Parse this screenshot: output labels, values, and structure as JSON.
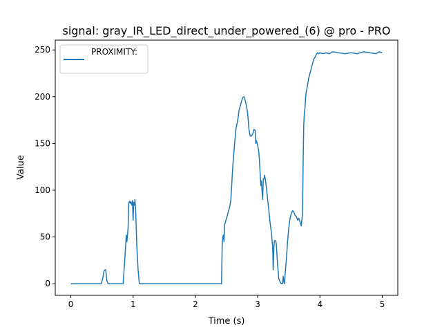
{
  "chart_data": {
    "type": "line",
    "title": "signal: gray_IR_LED_direct_under_powered_(6) @ pro - PRO",
    "xlabel": "Time (s)",
    "ylabel": "Value",
    "xlim": [
      -0.25,
      5.25
    ],
    "ylim": [
      -12.4,
      260.5
    ],
    "xticks": [
      0,
      1,
      2,
      3,
      4,
      5
    ],
    "yticks": [
      0,
      50,
      100,
      150,
      200,
      250
    ],
    "grid": false,
    "legend_position": "upper-left",
    "series": [
      {
        "name": "PROXIMITY:",
        "color": "#1f77b4",
        "points": [
          [
            0.0,
            0
          ],
          [
            0.49,
            0
          ],
          [
            0.51,
            5
          ],
          [
            0.53,
            13
          ],
          [
            0.55,
            15
          ],
          [
            0.56,
            15
          ],
          [
            0.58,
            3
          ],
          [
            0.6,
            0
          ],
          [
            0.84,
            0
          ],
          [
            0.86,
            20
          ],
          [
            0.88,
            40
          ],
          [
            0.89,
            52
          ],
          [
            0.9,
            45
          ],
          [
            0.91,
            52
          ],
          [
            0.92,
            60
          ],
          [
            0.93,
            86
          ],
          [
            0.94,
            88
          ],
          [
            0.955,
            86
          ],
          [
            0.965,
            88
          ],
          [
            0.98,
            84
          ],
          [
            0.99,
            89
          ],
          [
            1.0,
            68
          ],
          [
            1.01,
            87
          ],
          [
            1.02,
            84
          ],
          [
            1.03,
            90
          ],
          [
            1.04,
            80
          ],
          [
            1.06,
            40
          ],
          [
            1.08,
            15
          ],
          [
            1.1,
            0
          ],
          [
            2.42,
            0
          ],
          [
            2.43,
            40
          ],
          [
            2.44,
            50
          ],
          [
            2.45,
            52
          ],
          [
            2.46,
            45
          ],
          [
            2.47,
            63
          ],
          [
            2.5,
            70
          ],
          [
            2.55,
            82
          ],
          [
            2.57,
            90
          ],
          [
            2.6,
            125
          ],
          [
            2.63,
            150
          ],
          [
            2.65,
            165
          ],
          [
            2.68,
            175
          ],
          [
            2.7,
            185
          ],
          [
            2.72,
            190
          ],
          [
            2.74,
            195
          ],
          [
            2.76,
            199
          ],
          [
            2.78,
            200
          ],
          [
            2.8,
            196
          ],
          [
            2.82,
            190
          ],
          [
            2.84,
            182
          ],
          [
            2.86,
            165
          ],
          [
            2.88,
            158
          ],
          [
            2.9,
            158
          ],
          [
            2.92,
            160
          ],
          [
            2.94,
            165
          ],
          [
            2.96,
            164
          ],
          [
            2.97,
            150
          ],
          [
            2.98,
            153
          ],
          [
            3.0,
            148
          ],
          [
            3.02,
            140
          ],
          [
            3.03,
            130
          ],
          [
            3.04,
            118
          ],
          [
            3.05,
            105
          ],
          [
            3.06,
            110
          ],
          [
            3.07,
            100
          ],
          [
            3.08,
            90
          ],
          [
            3.09,
            112
          ],
          [
            3.1,
            112
          ],
          [
            3.11,
            116
          ],
          [
            3.12,
            113
          ],
          [
            3.14,
            103
          ],
          [
            3.16,
            90
          ],
          [
            3.18,
            78
          ],
          [
            3.2,
            65
          ],
          [
            3.22,
            55
          ],
          [
            3.24,
            40
          ],
          [
            3.25,
            15
          ],
          [
            3.26,
            40
          ],
          [
            3.27,
            46
          ],
          [
            3.29,
            46
          ],
          [
            3.3,
            42
          ],
          [
            3.32,
            20
          ],
          [
            3.34,
            5
          ],
          [
            3.36,
            2
          ],
          [
            3.38,
            0
          ],
          [
            3.4,
            0
          ],
          [
            3.41,
            8
          ],
          [
            3.42,
            2
          ],
          [
            3.43,
            0
          ],
          [
            3.44,
            10
          ],
          [
            3.46,
            25
          ],
          [
            3.48,
            45
          ],
          [
            3.5,
            60
          ],
          [
            3.52,
            70
          ],
          [
            3.54,
            75
          ],
          [
            3.56,
            78
          ],
          [
            3.58,
            77
          ],
          [
            3.6,
            73
          ],
          [
            3.62,
            72
          ],
          [
            3.64,
            68
          ],
          [
            3.66,
            70
          ],
          [
            3.68,
            66
          ],
          [
            3.7,
            62
          ],
          [
            3.72,
            75
          ],
          [
            3.73,
            130
          ],
          [
            3.74,
            170
          ],
          [
            3.75,
            183
          ],
          [
            3.76,
            188
          ],
          [
            3.77,
            200
          ],
          [
            3.78,
            205
          ],
          [
            3.8,
            212
          ],
          [
            3.82,
            220
          ],
          [
            3.84,
            225
          ],
          [
            3.86,
            230
          ],
          [
            3.88,
            235
          ],
          [
            3.9,
            240
          ],
          [
            3.92,
            242
          ],
          [
            3.94,
            245
          ],
          [
            3.96,
            247
          ],
          [
            3.98,
            246
          ],
          [
            4.0,
            247
          ],
          [
            4.05,
            246
          ],
          [
            4.1,
            247
          ],
          [
            4.15,
            246
          ],
          [
            4.2,
            248
          ],
          [
            4.3,
            247
          ],
          [
            4.4,
            246
          ],
          [
            4.5,
            247
          ],
          [
            4.6,
            246
          ],
          [
            4.7,
            248
          ],
          [
            4.8,
            247
          ],
          [
            4.9,
            246
          ],
          [
            4.95,
            248
          ],
          [
            5.0,
            247
          ]
        ]
      }
    ]
  }
}
